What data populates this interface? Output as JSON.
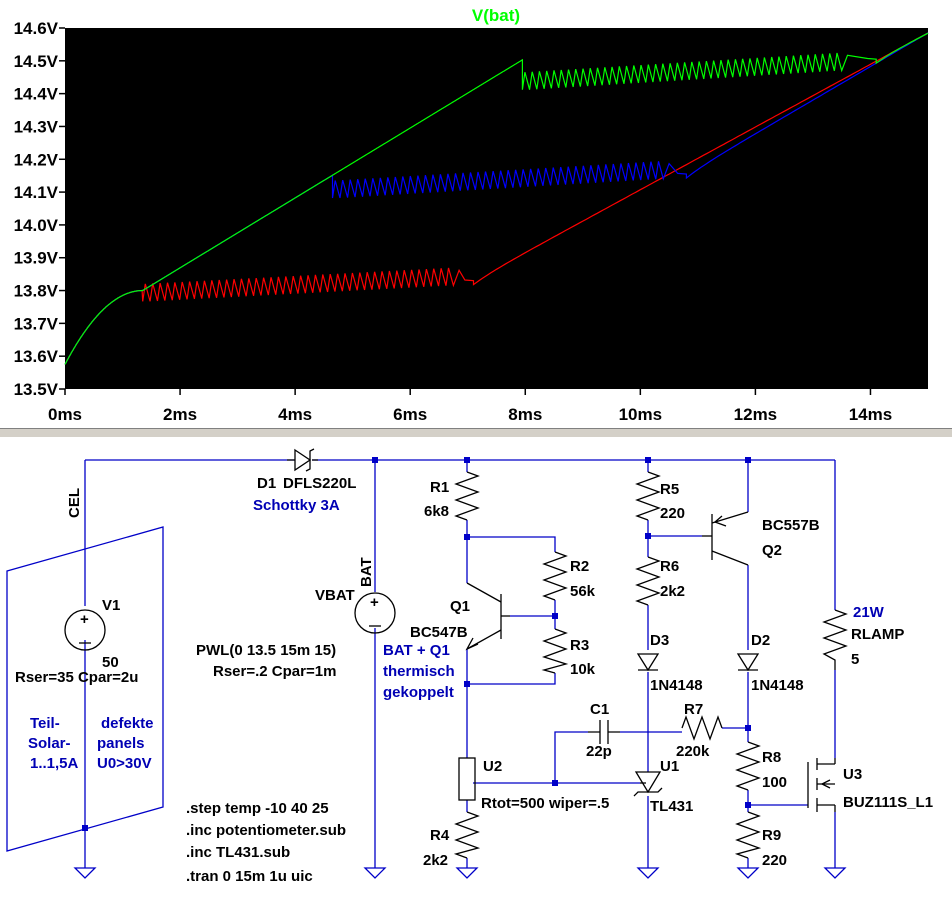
{
  "chart_data": {
    "type": "line",
    "title": "V(bat)",
    "title_color": "#00ff00",
    "xlim": [
      0,
      15
    ],
    "ylim": [
      13.5,
      14.6
    ],
    "x_ticks": [
      "0ms",
      "2ms",
      "4ms",
      "6ms",
      "8ms",
      "10ms",
      "12ms",
      "14ms"
    ],
    "x_tick_values": [
      0,
      2,
      4,
      6,
      8,
      10,
      12,
      14
    ],
    "y_ticks": [
      "13.5V",
      "13.6V",
      "13.7V",
      "13.8V",
      "13.9V",
      "14.0V",
      "14.1V",
      "14.2V",
      "14.3V",
      "14.4V",
      "14.5V",
      "14.6V"
    ],
    "y_tick_values": [
      13.5,
      13.6,
      13.7,
      13.8,
      13.9,
      14.0,
      14.1,
      14.2,
      14.3,
      14.4,
      14.5,
      14.6
    ],
    "background": "#000000",
    "series": [
      {
        "color": "#ff0000",
        "ramp_end_x": 1.35,
        "ramp_end_y": 13.8,
        "osc_start_x": 1.35,
        "osc_end_x": 6.75,
        "osc_level_start": 13.795,
        "osc_level_end": 13.845,
        "osc_amplitude": 0.028,
        "osc_cycles": 42,
        "recover_x": 7.1,
        "recover_y": 13.83,
        "end_x": 15,
        "end_y": 14.585
      },
      {
        "color": "#0000ff",
        "ramp_end_x": 4.65,
        "ramp_end_y": 14.15,
        "osc_start_x": 4.65,
        "osc_end_x": 10.4,
        "osc_level_start": 14.11,
        "osc_level_end": 14.17,
        "osc_amplitude": 0.028,
        "osc_cycles": 44,
        "recover_x": 10.8,
        "recover_y": 14.155,
        "end_x": 15,
        "end_y": 14.585
      },
      {
        "color": "#00ff00",
        "ramp_end_x": 7.95,
        "ramp_end_y": 14.48,
        "osc_start_x": 7.95,
        "osc_end_x": 13.5,
        "osc_level_start": 14.44,
        "osc_level_end": 14.5,
        "osc_amplitude": 0.028,
        "osc_cycles": 44,
        "recover_x": 14.1,
        "recover_y": 14.505,
        "end_x": 15,
        "end_y": 14.585
      }
    ]
  },
  "schematic": {
    "cel": "CEL",
    "bat": "BAT",
    "d1_name": "D1",
    "d1_part": "DFLS220L",
    "d1_note": "Schottky 3A",
    "v1_name": "V1",
    "v1_value": "50",
    "v1_params": "Rser=35 Cpar=2u",
    "solar_note_1": "Teil-",
    "solar_note_2": "Solar-",
    "solar_note_3": "1..1,5A",
    "defect_note_1": "defekte",
    "defect_note_2": "panels",
    "defect_note_3": "U0>30V",
    "vbat_name": "VBAT",
    "vbat_pwl": "PWL(0 13.5 15m 15)",
    "vbat_params": "Rser=.2 Cpar=1m",
    "thermal_1": "BAT + Q1",
    "thermal_2": "thermisch",
    "thermal_3": "gekoppelt",
    "r1_name": "R1",
    "r1_value": "6k8",
    "r2_name": "R2",
    "r2_value": "56k",
    "r3_name": "R3",
    "r3_value": "10k",
    "r4_name": "R4",
    "r4_value": "2k2",
    "r5_name": "R5",
    "r5_value": "220",
    "r6_name": "R6",
    "r6_value": "2k2",
    "r7_name": "R7",
    "r7_value": "220k",
    "r8_name": "R8",
    "r8_value": "100",
    "r9_name": "R9",
    "r9_value": "220",
    "q1_name": "Q1",
    "q1_part": "BC547B",
    "q2_part": "BC557B",
    "q2_name": "Q2",
    "u2_name": "U2",
    "u2_params": "Rtot=500 wiper=.5",
    "u1_name": "U1",
    "u1_part": "TL431",
    "c1_name": "C1",
    "c1_value": "22p",
    "d3_name": "D3",
    "d3_part": "1N4148",
    "d2_name": "D2",
    "d2_part": "1N4148",
    "lamp_power": "21W",
    "rlamp_name": "RLAMP",
    "rlamp_value": "5",
    "u3_name": "U3",
    "u3_part": "BUZ111S_L1",
    "spice_1": ".step temp -10 40 25",
    "spice_2": ".inc potentiometer.sub",
    "spice_3": ".inc TL431.sub",
    "spice_4": ".tran 0 15m 1u uic"
  }
}
